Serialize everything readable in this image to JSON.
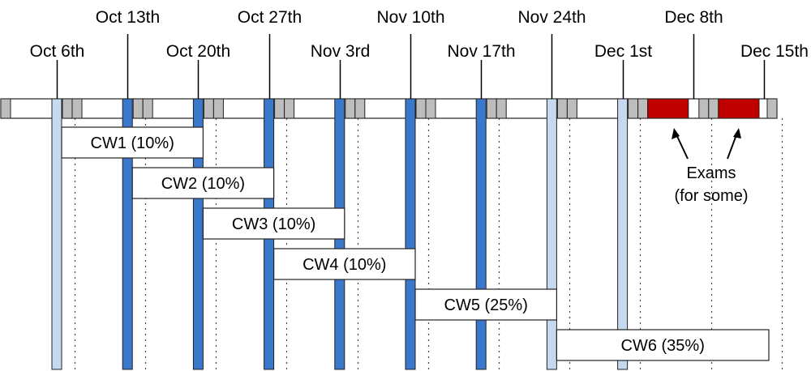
{
  "colors": {
    "week_bar_dark": "#3a78cc",
    "week_bar_light": "#c7d9ef",
    "weekend": "#bdbdbd",
    "exam": "#c00000",
    "outline": "#222222"
  },
  "timeline": {
    "dates": [
      {
        "label": "Oct 6th",
        "week": 1
      },
      {
        "label": "Oct 13th",
        "week": 2
      },
      {
        "label": "Oct 20th",
        "week": 3
      },
      {
        "label": "Oct 27th",
        "week": 4
      },
      {
        "label": "Nov 3rd",
        "week": 5
      },
      {
        "label": "Nov 10th",
        "week": 6
      },
      {
        "label": "Nov 17th",
        "week": 7
      },
      {
        "label": "Nov 24th",
        "week": 8
      },
      {
        "label": "Dec 1st",
        "week": 9
      },
      {
        "label": "Dec 8th",
        "week": 10
      },
      {
        "label": "Dec 15th",
        "week": 11
      }
    ],
    "release_bars": [
      {
        "week": 1,
        "style": "light"
      },
      {
        "week": 2,
        "style": "dark"
      },
      {
        "week": 3,
        "style": "dark"
      },
      {
        "week": 4,
        "style": "dark"
      },
      {
        "week": 5,
        "style": "dark"
      },
      {
        "week": 6,
        "style": "dark"
      },
      {
        "week": 7,
        "style": "dark"
      },
      {
        "week": 8,
        "style": "light"
      },
      {
        "week": 9,
        "style": "light"
      }
    ],
    "exam_weeks": [
      10,
      11
    ]
  },
  "courseworks": [
    {
      "label": "CW1 (10%)",
      "start_week": 1,
      "end_week": 3
    },
    {
      "label": "CW2 (10%)",
      "start_week": 2,
      "end_week": 4
    },
    {
      "label": "CW3 (10%)",
      "start_week": 3,
      "end_week": 5
    },
    {
      "label": "CW4 (10%)",
      "start_week": 4,
      "end_week": 6
    },
    {
      "label": "CW5 (25%)",
      "start_week": 6,
      "end_week": 8
    },
    {
      "label": "CW6 (35%)",
      "start_week": 8,
      "end_week": 11
    }
  ],
  "exam_note": {
    "line1": "Exams",
    "line2": "(for some)"
  }
}
